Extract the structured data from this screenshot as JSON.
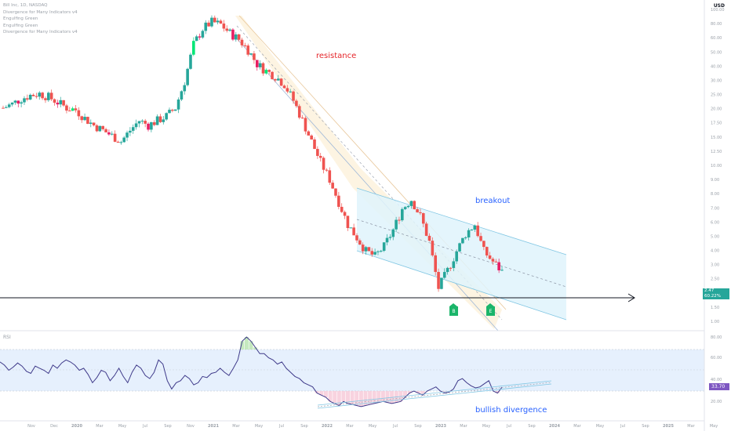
{
  "legend": {
    "lines": [
      "Bill Inc, 1D, NASDAQ",
      "Divergence for Many Indicators v4",
      "Engulfing Green",
      "Engulfing Green",
      "Divergence for Many Indicators v4"
    ]
  },
  "axis": {
    "currency": "USD",
    "price_ticks": [
      "100.00",
      "80.00",
      "60.00",
      "50.00",
      "40.00",
      "30.00",
      "25.00",
      "20.00",
      "17.50",
      "15.00",
      "12.50",
      "10.00",
      "9.00",
      "8.00",
      "7.00",
      "6.00",
      "5.00",
      "4.00",
      "3.00",
      "2.50",
      "2.00",
      "1.50",
      "1.00"
    ],
    "rsi_ticks": [
      "80.00",
      "60.00",
      "40.00",
      "20.00"
    ],
    "time_ticks": [
      "Nov",
      "Dec",
      "2020",
      "Mar",
      "May",
      "Jul",
      "Sep",
      "Nov",
      "2021",
      "Mar",
      "May",
      "Jul",
      "Sep",
      "2022",
      "Mar",
      "May",
      "Jul",
      "Sep",
      "2023",
      "Mar",
      "May",
      "Jul",
      "Sep",
      "2024",
      "Mar",
      "May",
      "Jul",
      "Sep",
      "2025",
      "Mar",
      "May"
    ]
  },
  "annotations": {
    "resistance": "resistance",
    "breakout": "breakout",
    "bullish_divergence": "bullish divergence"
  },
  "markers": [
    {
      "label": "B",
      "color": "#1bb56a"
    },
    {
      "label": "E",
      "color": "#1bb56a"
    }
  ],
  "price_label": {
    "value": "2.47",
    "change": "60.22%",
    "color": "#26a69a"
  },
  "rsi": {
    "title": "RSI",
    "value": "33.70",
    "color": "#7e57c2"
  },
  "colors": {
    "up": "#26a69a",
    "down": "#ef5350",
    "up_strong": "#00e676",
    "down_strong": "#e91e63",
    "rsi_line": "#3f3a8a"
  },
  "chart_data": {
    "type": "candlestick",
    "main_series": {
      "name": "Bill Inc, 1D, NASDAQ",
      "close_trend": [
        20.0,
        21.0,
        22.5,
        23.5,
        24.0,
        23.0,
        21.5,
        20.0,
        19.5,
        17.5,
        16.0,
        15.0,
        14.0,
        13.0,
        15.0,
        17.0,
        16.0,
        17.0,
        18.0,
        20.0,
        28.0,
        45.0,
        55.0,
        60.0,
        58.0,
        52.0,
        48.0,
        42.0,
        35.0,
        32.0,
        30.0,
        27.0,
        22.0,
        17.0,
        13.0,
        10.0,
        8.0,
        6.0,
        4.5,
        3.8,
        3.2,
        3.0,
        3.4,
        4.2,
        5.5,
        6.2,
        5.0,
        3.6,
        2.0,
        2.5,
        3.2,
        4.0,
        4.5,
        3.2,
        2.8,
        2.47
      ],
      "last": 2.47,
      "change_pct": "60.22%"
    },
    "rsi_series": {
      "name": "RSI",
      "values": [
        58,
        55,
        50,
        53,
        57,
        54,
        49,
        47,
        54,
        52,
        50,
        47,
        55,
        52,
        57,
        60,
        58,
        55,
        50,
        52,
        46,
        38,
        43,
        50,
        48,
        40,
        45,
        52,
        44,
        38,
        48,
        55,
        52,
        45,
        42,
        48,
        60,
        56,
        40,
        32,
        38,
        40,
        45,
        42,
        36,
        38,
        44,
        43,
        47,
        48,
        52,
        48,
        45,
        52,
        60,
        78,
        82,
        78,
        72,
        66,
        66,
        62,
        60,
        56,
        58,
        52,
        48,
        44,
        42,
        38,
        36,
        34,
        28,
        26,
        24,
        20,
        18,
        16,
        20,
        18,
        17,
        16,
        15,
        16,
        17,
        18,
        19,
        20,
        19,
        18,
        19,
        20,
        24,
        28,
        30,
        28,
        26,
        30,
        32,
        34,
        30,
        28,
        29,
        32,
        40,
        42,
        38,
        35,
        33,
        34,
        37,
        40,
        30,
        28,
        33.7
      ],
      "last": 33.7,
      "levels": [
        70,
        50,
        30
      ]
    }
  }
}
